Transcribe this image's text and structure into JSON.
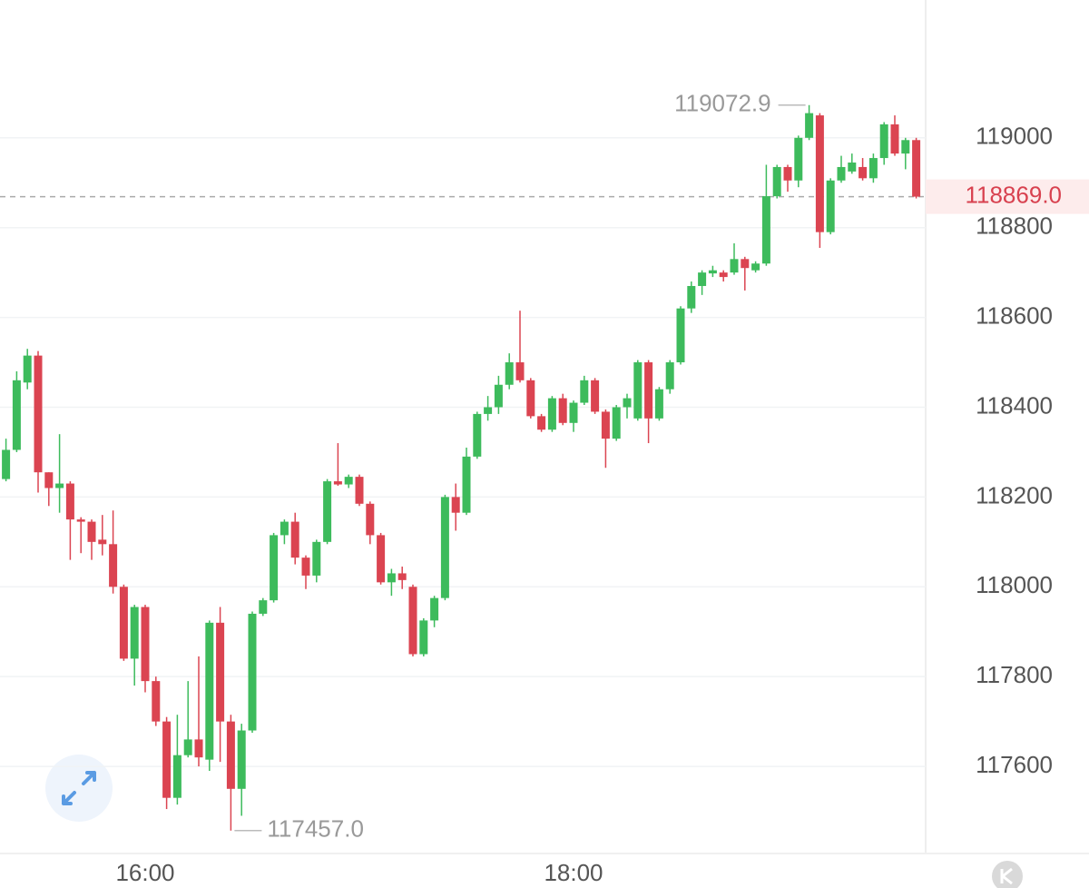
{
  "chart_data": {
    "type": "candlestick",
    "categories": [
      null,
      null,
      null,
      null,
      null,
      null,
      null,
      null,
      null,
      null,
      null,
      null,
      null,
      "16:00",
      null,
      null,
      null,
      null,
      null,
      null,
      null,
      null,
      null,
      null,
      null,
      null,
      null,
      null,
      null,
      null,
      null,
      null,
      null,
      null,
      null,
      null,
      null,
      null,
      null,
      null,
      null,
      null,
      null,
      null,
      null,
      null,
      null,
      null,
      null,
      null,
      null,
      null,
      null,
      "18:00",
      null,
      null,
      null,
      null,
      null,
      null,
      null,
      null,
      null,
      null,
      null,
      null,
      null,
      null,
      null,
      null,
      null,
      null,
      null,
      null,
      null,
      null,
      null,
      null,
      null,
      null,
      null,
      null,
      null,
      null,
      null,
      null
    ],
    "open": [
      118240,
      118305,
      118455,
      118515,
      118255,
      118220,
      118230,
      118150,
      118145,
      118105,
      118095,
      118000,
      117840,
      117955,
      117790,
      117700,
      117530,
      117625,
      117660,
      117615,
      117920,
      117700,
      117550,
      117680,
      117940,
      117970,
      118115,
      118145,
      118065,
      118025,
      118100,
      118235,
      118228,
      118245,
      118185,
      118115,
      118010,
      118030,
      118000,
      117850,
      117925,
      117975,
      118200,
      118165,
      118290,
      118385,
      118400,
      118450,
      118500,
      118460,
      118380,
      118350,
      118420,
      118365,
      118410,
      118460,
      118390,
      118330,
      118400,
      118375,
      118500,
      118375,
      118440,
      118500,
      118620,
      118670,
      118698,
      118700,
      118700,
      118730,
      118705,
      118720,
      118870,
      118935,
      118905,
      119000,
      119050,
      118790,
      118905,
      118925,
      118935,
      118910,
      118955,
      119030,
      118965,
      118995
    ],
    "high": [
      118330,
      118480,
      118530,
      118525,
      118255,
      118340,
      118235,
      118155,
      118150,
      118160,
      118170,
      118005,
      117960,
      117960,
      117800,
      117710,
      117715,
      117790,
      117845,
      117925,
      117955,
      117715,
      117695,
      117945,
      117975,
      118120,
      118150,
      118165,
      118070,
      118105,
      118240,
      118320,
      118250,
      118250,
      118190,
      118120,
      118040,
      118045,
      118005,
      117930,
      117980,
      118205,
      118230,
      118310,
      118390,
      118425,
      118470,
      118520,
      118615,
      118465,
      118385,
      118425,
      118430,
      118415,
      118470,
      118465,
      118395,
      118405,
      118430,
      118505,
      118505,
      118445,
      118505,
      118625,
      118680,
      118705,
      118715,
      118705,
      118765,
      118735,
      118725,
      118940,
      118940,
      118940,
      119005,
      119072.9,
      119055,
      118910,
      118960,
      118965,
      118955,
      118965,
      119035,
      119050,
      119000,
      119000
    ],
    "low": [
      118235,
      118300,
      118440,
      118210,
      118180,
      118165,
      118060,
      118075,
      118060,
      118070,
      117985,
      117835,
      117780,
      117765,
      117690,
      117505,
      117515,
      117620,
      117600,
      117590,
      117610,
      117457,
      117490,
      117675,
      117935,
      117965,
      118095,
      118050,
      117995,
      118010,
      118095,
      118225,
      118220,
      118180,
      118095,
      118005,
      117980,
      117995,
      117845,
      117845,
      117910,
      117970,
      118125,
      118160,
      118285,
      118370,
      118385,
      118440,
      118455,
      118375,
      118345,
      118345,
      118360,
      118345,
      118405,
      118385,
      118265,
      118325,
      118375,
      118370,
      118320,
      118370,
      118430,
      118495,
      118610,
      118650,
      118690,
      118680,
      118695,
      118660,
      118700,
      118715,
      118865,
      118880,
      118890,
      118995,
      118755,
      118785,
      118900,
      118920,
      118905,
      118900,
      118940,
      118960,
      118930,
      118865
    ],
    "close": [
      118305,
      118460,
      118515,
      118255,
      118220,
      118230,
      118150,
      118145,
      118100,
      118095,
      118000,
      117840,
      117955,
      117790,
      117700,
      117530,
      117625,
      117660,
      117620,
      117920,
      117700,
      117550,
      117680,
      117940,
      117970,
      118115,
      118145,
      118065,
      118025,
      118100,
      118235,
      118228,
      118245,
      118185,
      118115,
      118010,
      118030,
      118015,
      117850,
      117925,
      117975,
      118200,
      118165,
      118290,
      118385,
      118400,
      118450,
      118500,
      118460,
      118380,
      118350,
      118420,
      118365,
      118410,
      118460,
      118390,
      118330,
      118400,
      118420,
      118500,
      118375,
      118440,
      118500,
      118620,
      118670,
      118700,
      118705,
      118690,
      118730,
      118710,
      118720,
      118870,
      118935,
      118905,
      119000,
      119055,
      118790,
      118905,
      118935,
      118945,
      118910,
      118955,
      119030,
      118965,
      118995,
      118869
    ],
    "up_color": "#3dbb5c",
    "down_color": "#db4451",
    "ylim": [
      117406,
      119307
    ],
    "yticks": [
      117600,
      117800,
      118000,
      118200,
      118400,
      118600,
      118800,
      119000
    ],
    "grid": true,
    "high_label": {
      "value": 119072.9,
      "label": "119072.9"
    },
    "low_label": {
      "value": 117457,
      "label": "117457.0"
    },
    "last_price": {
      "value": 118869,
      "label": "118869.0"
    }
  }
}
